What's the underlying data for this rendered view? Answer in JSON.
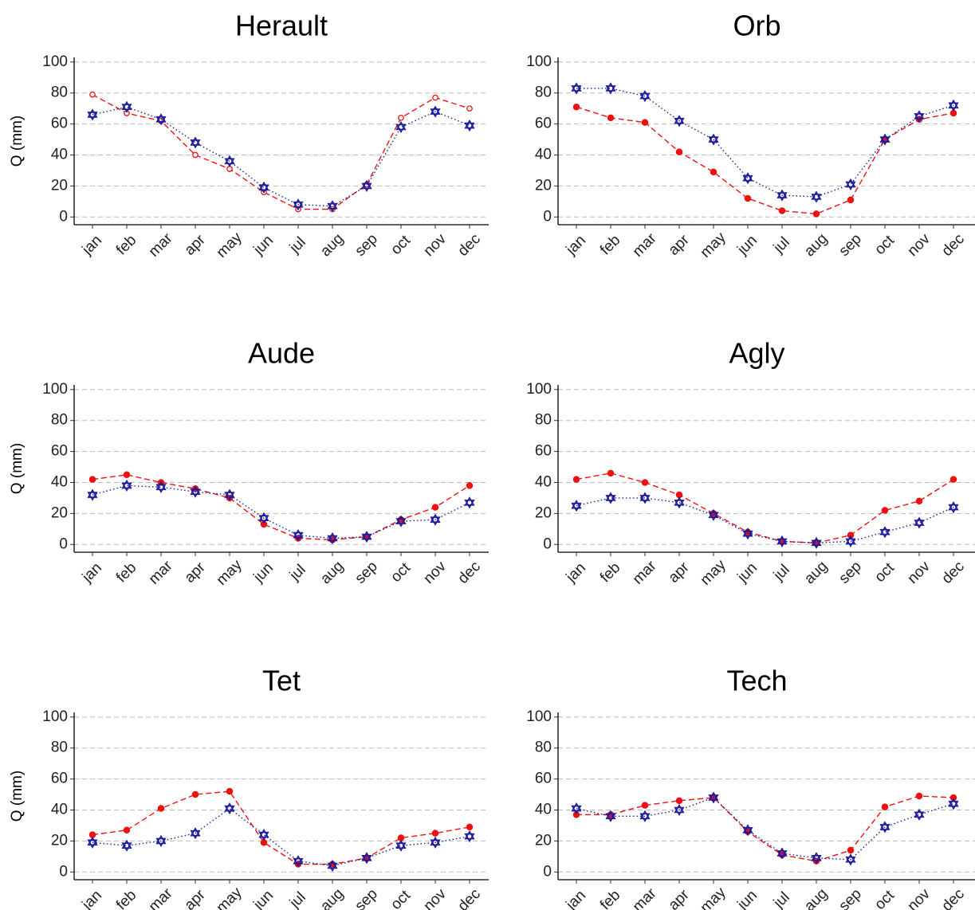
{
  "chart_data": [
    {
      "type": "line",
      "title": "Herault",
      "ylabel": "Q (mm)",
      "categories": [
        "jan",
        "feb",
        "mar",
        "apr",
        "may",
        "jun",
        "jul",
        "aug",
        "sep",
        "oct",
        "nov",
        "dec"
      ],
      "ylim": [
        -5,
        103
      ],
      "yticks": [
        0,
        20,
        40,
        60,
        80,
        100
      ],
      "grid": true,
      "series": [
        {
          "color": "#ee1111",
          "marker": "circle",
          "marker_filled": false,
          "line": "dashed",
          "values": [
            79,
            67,
            62,
            40,
            31,
            16,
            5,
            5,
            21,
            64,
            77,
            70
          ]
        },
        {
          "color": "#1a1a9c",
          "marker": "star",
          "line": "dotted",
          "values": [
            66,
            71,
            63,
            48,
            36,
            19,
            8,
            7,
            20,
            58,
            68,
            59
          ]
        }
      ]
    },
    {
      "type": "line",
      "title": "Orb",
      "categories": [
        "jan",
        "feb",
        "mar",
        "apr",
        "may",
        "jun",
        "jul",
        "aug",
        "sep",
        "oct",
        "nov",
        "dec"
      ],
      "ylim": [
        -5,
        103
      ],
      "yticks": [
        0,
        20,
        40,
        60,
        80,
        100
      ],
      "grid": true,
      "series": [
        {
          "color": "#ee1111",
          "marker": "circle",
          "marker_filled": true,
          "line": "dashed",
          "values": [
            71,
            64,
            61,
            42,
            29,
            12,
            4,
            2,
            11,
            50,
            63,
            67
          ]
        },
        {
          "color": "#1a1a9c",
          "marker": "star",
          "line": "dotted",
          "values": [
            83,
            83,
            78,
            62,
            50,
            25,
            14,
            13,
            21,
            50,
            65,
            72
          ]
        }
      ]
    },
    {
      "type": "line",
      "title": "Aude",
      "ylabel": "Q (mm)",
      "categories": [
        "jan",
        "feb",
        "mar",
        "apr",
        "may",
        "jun",
        "jul",
        "aug",
        "sep",
        "oct",
        "nov",
        "dec"
      ],
      "ylim": [
        -5,
        103
      ],
      "yticks": [
        0,
        20,
        40,
        60,
        80,
        100
      ],
      "grid": true,
      "series": [
        {
          "color": "#ee1111",
          "marker": "circle",
          "marker_filled": true,
          "line": "dashed",
          "values": [
            42,
            45,
            40,
            36,
            30,
            13,
            4,
            3,
            5,
            16,
            24,
            38
          ]
        },
        {
          "color": "#1a1a9c",
          "marker": "star",
          "line": "dotted",
          "values": [
            32,
            38,
            37,
            34,
            32,
            17,
            6,
            4,
            5,
            15,
            16,
            27
          ]
        }
      ]
    },
    {
      "type": "line",
      "title": "Agly",
      "categories": [
        "jan",
        "feb",
        "mar",
        "apr",
        "may",
        "jun",
        "jul",
        "aug",
        "sep",
        "oct",
        "nov",
        "dec"
      ],
      "ylim": [
        -5,
        103
      ],
      "yticks": [
        0,
        20,
        40,
        60,
        80,
        100
      ],
      "grid": true,
      "series": [
        {
          "color": "#ee1111",
          "marker": "circle",
          "marker_filled": true,
          "line": "dashed",
          "values": [
            42,
            46,
            40,
            32,
            20,
            8,
            2,
            1,
            6,
            22,
            28,
            42
          ]
        },
        {
          "color": "#1a1a9c",
          "marker": "star",
          "line": "dotted",
          "values": [
            25,
            30,
            30,
            27,
            19,
            7,
            2,
            1,
            2,
            8,
            14,
            24
          ]
        }
      ]
    },
    {
      "type": "line",
      "title": "Tet",
      "ylabel": "Q (mm)",
      "categories": [
        "jan",
        "feb",
        "mar",
        "apr",
        "may",
        "jun",
        "jul",
        "aug",
        "sep",
        "oct",
        "nov",
        "dec"
      ],
      "ylim": [
        -5,
        103
      ],
      "yticks": [
        0,
        20,
        40,
        60,
        80,
        100
      ],
      "grid": true,
      "series": [
        {
          "color": "#ee1111",
          "marker": "circle",
          "marker_filled": true,
          "line": "dashed",
          "values": [
            24,
            27,
            41,
            50,
            52,
            19,
            5,
            5,
            9,
            22,
            25,
            29
          ]
        },
        {
          "color": "#1a1a9c",
          "marker": "star",
          "line": "dotted",
          "values": [
            19,
            17,
            20,
            25,
            41,
            24,
            7,
            4,
            9,
            17,
            19,
            23
          ]
        }
      ]
    },
    {
      "type": "line",
      "title": "Tech",
      "categories": [
        "jan",
        "feb",
        "mar",
        "apr",
        "may",
        "jun",
        "jul",
        "aug",
        "sep",
        "oct",
        "nov",
        "dec"
      ],
      "ylim": [
        -5,
        103
      ],
      "yticks": [
        0,
        20,
        40,
        60,
        80,
        100
      ],
      "grid": true,
      "series": [
        {
          "color": "#ee1111",
          "marker": "circle",
          "marker_filled": true,
          "line": "dashed",
          "values": [
            37,
            37,
            43,
            46,
            48,
            26,
            11,
            7,
            14,
            42,
            49,
            48
          ]
        },
        {
          "color": "#1a1a9c",
          "marker": "star",
          "line": "dotted",
          "values": [
            41,
            36,
            36,
            40,
            48,
            27,
            12,
            9,
            8,
            29,
            37,
            44
          ]
        }
      ]
    }
  ]
}
